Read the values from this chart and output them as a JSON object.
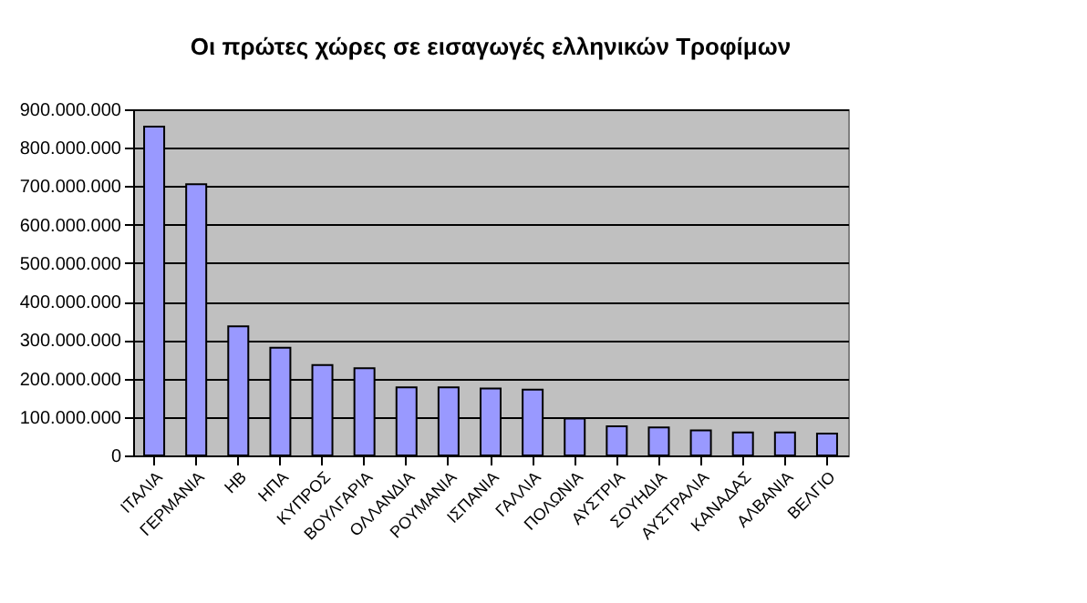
{
  "chart_data": {
    "type": "bar",
    "title": "Οι πρώτες χώρες σε εισαγωγές ελληνικών Τροφίμων",
    "categories": [
      "ΙΤΑΛΙΑ",
      "ΓΕΡΜΑΝΙΑ",
      "ΗΒ",
      "ΗΠΑ",
      "ΚΥΠΡΟΣ",
      "ΒΟΥΛΓΑΡΙΑ",
      "ΟΛΛΑΝΔΙΑ",
      "ΡΟΥΜΑΝΙΑ",
      "ΙΣΠΑΝΙΑ",
      "ΓΑΛΛΙΑ",
      "ΠΟΛΩΝΙΑ",
      "ΑΥΣΤΡΙΑ",
      "ΣΟΥΗΔΙΑ",
      "ΑΥΣΤΡΑΛΙΑ",
      "ΚΑΝΑΔΑΣ",
      "ΑΛΒΑΝΙΑ",
      "ΒΕΛΓΙΟ"
    ],
    "values": [
      855000000,
      705000000,
      336000000,
      280000000,
      235000000,
      227000000,
      177000000,
      177000000,
      174000000,
      171000000,
      96000000,
      76000000,
      73000000,
      65000000,
      60000000,
      60000000,
      57000000
    ],
    "color": "#9999ff",
    "ylim": [
      0,
      900000000
    ],
    "yticks": [
      {
        "value": 0,
        "label": "0"
      },
      {
        "value": 100000000,
        "label": "100.000.000"
      },
      {
        "value": 200000000,
        "label": "200.000.000"
      },
      {
        "value": 300000000,
        "label": "300.000.000"
      },
      {
        "value": 400000000,
        "label": "400.000.000"
      },
      {
        "value": 500000000,
        "label": "500.000.000"
      },
      {
        "value": 600000000,
        "label": "600.000.000"
      },
      {
        "value": 700000000,
        "label": "700.000.000"
      },
      {
        "value": 800000000,
        "label": "800.000.000"
      },
      {
        "value": 900000000,
        "label": "900.000.000"
      }
    ],
    "grid": "y"
  }
}
